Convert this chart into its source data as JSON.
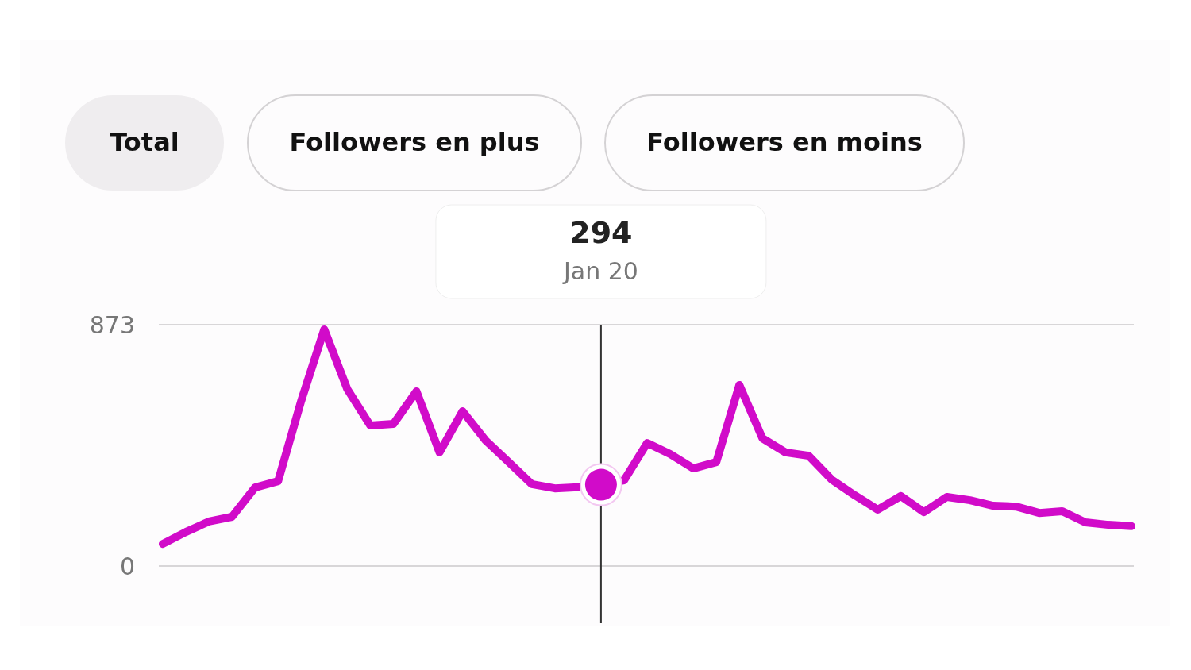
{
  "chart_data": {
    "type": "line",
    "categories": [
      null,
      null,
      null,
      null,
      null,
      null,
      null,
      null,
      null,
      null,
      null,
      null,
      null,
      null,
      null,
      null,
      null,
      null,
      null,
      null,
      null,
      null,
      null,
      null,
      null,
      null,
      null,
      null,
      null,
      null,
      null,
      null,
      null,
      null,
      null,
      null,
      null,
      null,
      null,
      null,
      null,
      null,
      null
    ],
    "series": [
      {
        "color": "#d10bc9",
        "values": [
          80,
          123,
          161,
          178,
          284,
          307,
          597,
          856,
          640,
          508,
          514,
          632,
          411,
          560,
          454,
          376,
          296,
          281,
          285,
          294,
          310,
          445,
          405,
          353,
          376,
          655,
          462,
          411,
          399,
          313,
          256,
          204,
          253,
          195,
          250,
          238,
          218,
          215,
          192,
          198,
          158,
          149,
          144
        ]
      }
    ],
    "ylim": [
      0,
      873
    ],
    "yticks": [
      0,
      873
    ],
    "grid": "y",
    "marker": "none",
    "line_style": "solid",
    "annotations": [
      "Total",
      "Followers en plus",
      "Followers en moins",
      "294",
      "Jan 20"
    ]
  }
}
